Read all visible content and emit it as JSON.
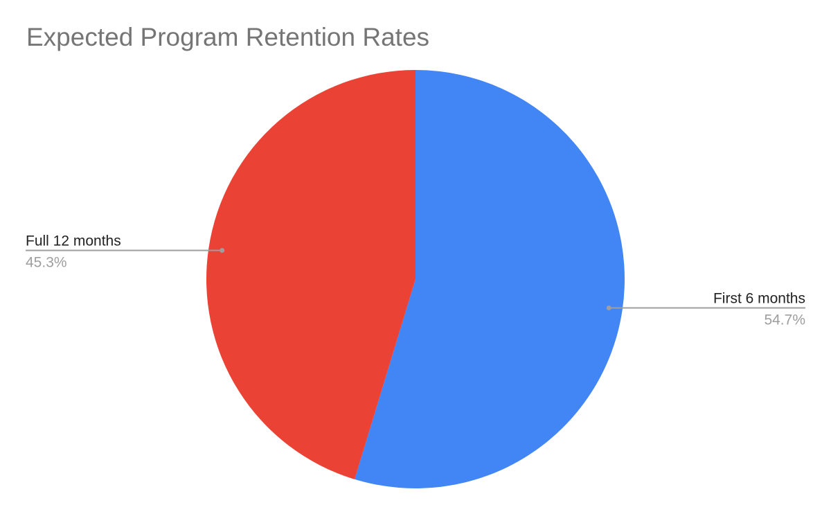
{
  "chart_data": {
    "type": "pie",
    "title": "Expected Program Retention Rates",
    "slices": [
      {
        "label": "First 6 months",
        "value": 54.7,
        "display": "54.7%",
        "color": "#4285F4"
      },
      {
        "label": "Full 12 months",
        "value": 45.3,
        "display": "45.3%",
        "color": "#EA4335"
      }
    ],
    "start_angle": "12 o'clock",
    "direction": "clockwise",
    "label_style": "leader lines with label and percent"
  }
}
